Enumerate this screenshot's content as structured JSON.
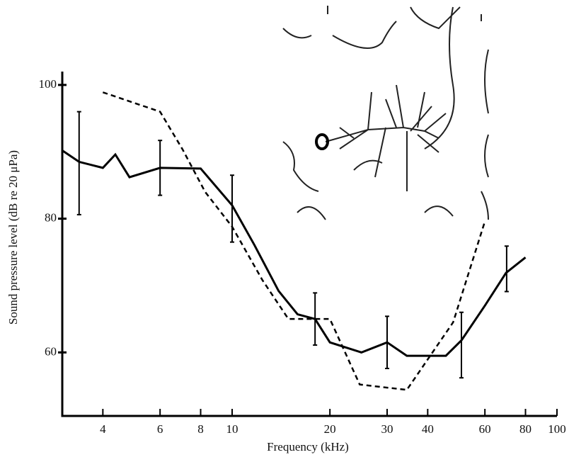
{
  "chart_data": {
    "type": "line",
    "x_label": "Frequency (kHz)",
    "y_label": "Sound pressure level (dB re 20 μPa)",
    "log_x": true,
    "xlim": [
      3,
      100
    ],
    "ylim": [
      50.5,
      102
    ],
    "xticks": [
      4,
      6,
      8,
      10,
      20,
      30,
      40,
      60,
      80,
      100
    ],
    "yticks": [
      60,
      80,
      100
    ],
    "series": [
      {
        "color": "#000000",
        "line_style": "solid",
        "x": [
          3.0,
          3.38,
          4.0,
          4.37,
          4.83,
          6,
          8,
          10,
          11.7,
          13.9,
          15.9,
          18,
          20,
          25,
          30,
          34.5,
          40,
          45.5,
          50.8,
          60,
          69.7,
          80
        ],
        "values": [
          90.2,
          88.5,
          87.6,
          89.6,
          86.2,
          87.6,
          87.5,
          82,
          76.1,
          69.2,
          65.7,
          65,
          61.5,
          60,
          61.5,
          59.5,
          59.5,
          59.5,
          61.8,
          67,
          71.9,
          74.2
        ]
      },
      {
        "color": "#000000",
        "line_style": "dashed",
        "x": [
          4,
          6,
          7.03,
          8.26,
          10,
          12.4,
          14.9,
          20,
          24.7,
          34.5,
          47.9,
          60
        ],
        "values": [
          98.9,
          96,
          90.4,
          84,
          78.8,
          70.8,
          65,
          65,
          55.2,
          54.4,
          64.5,
          79.6
        ]
      }
    ],
    "error_bars": {
      "color": "#000000",
      "x": [
        3.38,
        6,
        10,
        18,
        30,
        50.8,
        70
      ],
      "values": [
        88.3,
        87.6,
        81.5,
        65,
        61.5,
        61.1,
        72.5
      ],
      "errors": [
        7.7,
        4.1,
        5,
        3.9,
        3.9,
        4.9,
        3.4
      ]
    }
  }
}
